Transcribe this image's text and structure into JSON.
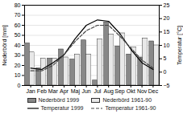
{
  "chart_data": {
    "type": "bar",
    "categories": [
      "Jan",
      "Feb",
      "Mar",
      "Apr",
      "Maj",
      "Jun",
      "Jul",
      "Aug",
      "Sep",
      "Okt",
      "Nov",
      "Dec"
    ],
    "ylabel": "Nederbörd [mm]",
    "y2label": "Temperatur [°C]",
    "ylim": [
      0,
      80
    ],
    "yticks": [
      0,
      10,
      20,
      30,
      40,
      50,
      60,
      70,
      80
    ],
    "y2lim": [
      -5,
      25
    ],
    "y2ticks": [
      -5,
      0,
      5,
      10,
      15,
      20,
      25
    ],
    "grid": true,
    "legend": "bottom",
    "series": [
      {
        "name": "Nederbörd 1999",
        "type": "bar",
        "color": "#888888",
        "values": [
          42,
          17,
          27,
          36,
          26,
          45,
          5,
          63,
          39,
          31,
          28,
          44
        ]
      },
      {
        "name": "Nederbörd 1961-90",
        "type": "bar",
        "color": "#e8e8e8",
        "values": [
          33,
          27,
          27,
          28,
          31,
          31,
          46,
          51,
          52,
          38,
          47,
          40
        ]
      },
      {
        "name": "Temperatur 1999",
        "type": "line",
        "axis": "y2",
        "color": "#000000",
        "line_style": "solid",
        "values": [
          1.5,
          1.0,
          3.5,
          6.5,
          12.5,
          17.5,
          19.5,
          19.0,
          14.5,
          8.5,
          3.5,
          1.0
        ]
      },
      {
        "name": "Temperatur 1961-90",
        "type": "line",
        "axis": "y2",
        "color": "#444444",
        "line_style": "dashed",
        "values": [
          0.5,
          0.5,
          2.5,
          6.5,
          11.5,
          15.5,
          17.5,
          17.5,
          13.5,
          9.0,
          4.5,
          1.5
        ]
      }
    ]
  }
}
